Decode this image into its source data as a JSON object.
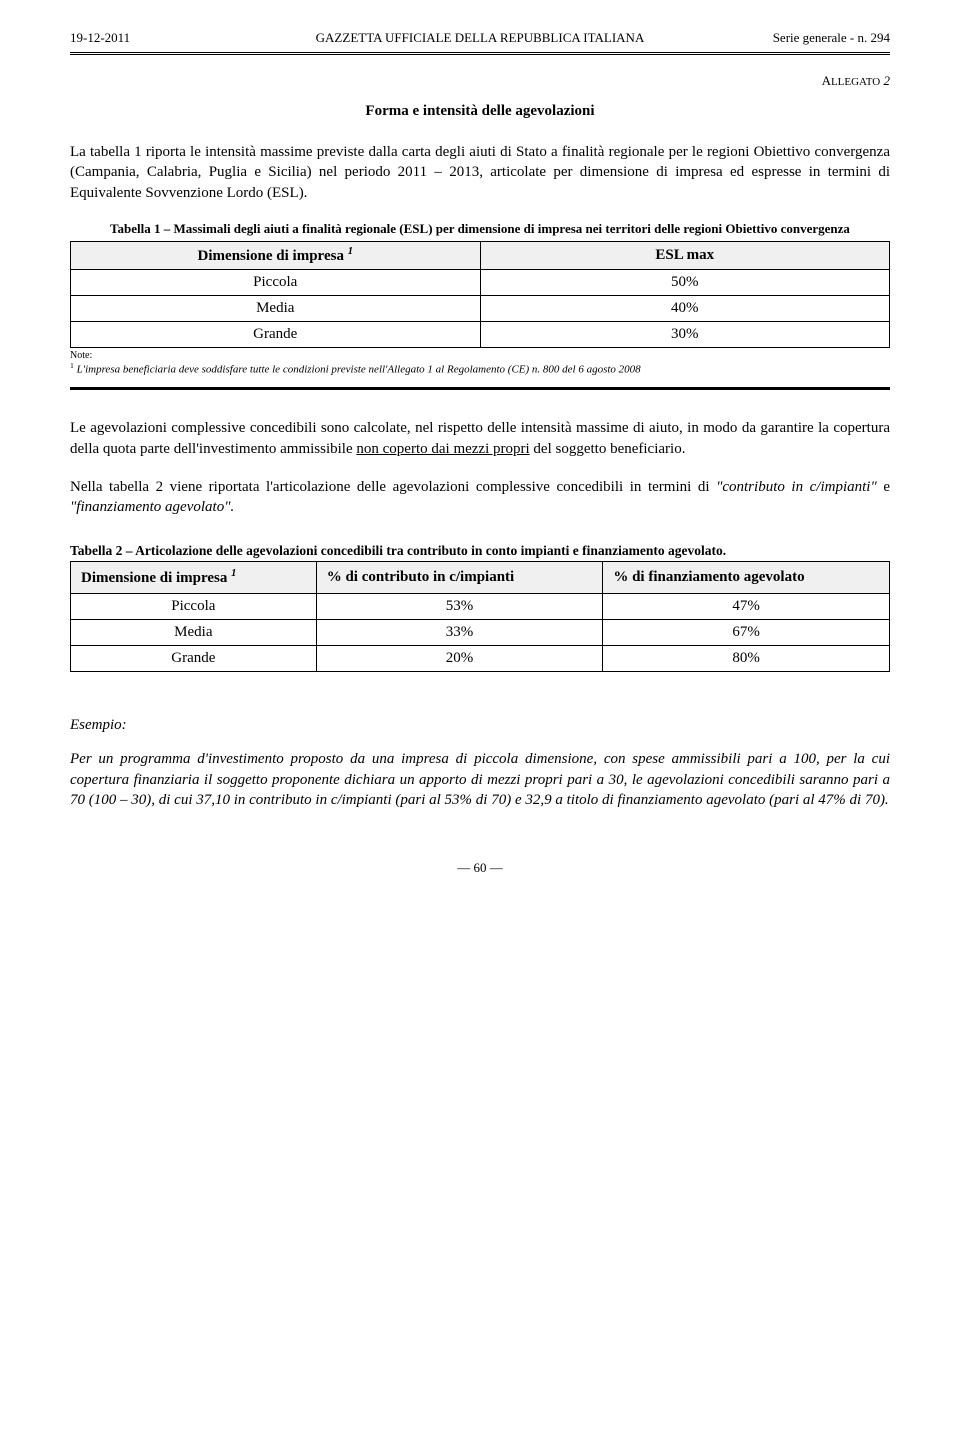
{
  "header": {
    "left": "19-12-2011",
    "center": "GAZZETTA UFFICIALE DELLA REPUBBLICA ITALIANA",
    "right": "Serie generale - n. 294"
  },
  "allegato": "ALLEGATO 2",
  "title": "Forma e intensità delle agevolazioni",
  "intro": "La tabella 1 riporta le intensità massime previste dalla carta degli aiuti di Stato a finalità regionale per le regioni Obiettivo convergenza (Campania, Calabria, Puglia e Sicilia) nel periodo 2011 – 2013, articolate per dimensione di impresa ed espresse in termini di Equivalente Sovvenzione Lordo (ESL).",
  "table1": {
    "caption": "Tabella 1 – Massimali degli aiuti a finalità regionale (ESL) per dimensione di impresa nei territori delle regioni Obiettivo convergenza",
    "header_left": "Dimensione di impresa",
    "header_right": "ESL max",
    "rows": [
      {
        "label": "Piccola",
        "value": "50%"
      },
      {
        "label": "Media",
        "value": "40%"
      },
      {
        "label": "Grande",
        "value": "30%"
      }
    ],
    "note_label": "Note:",
    "note_text": "L'impresa beneficiaria deve soddisfare tutte le condizioni previste nell'Allegato 1 al Regolamento (CE) n. 800 del 6 agosto 2008"
  },
  "para2": "Le agevolazioni complessive concedibili sono calcolate, nel rispetto delle intensità massime di aiuto, in modo da garantire la copertura della quota parte dell'investimento ammissibile ",
  "para2_underlined": "non coperto dai mezzi propri",
  "para2_after": " del soggetto beneficiario.",
  "para3_a": "Nella tabella 2 viene riportata l'articolazione delle agevolazioni complessive concedibili in termini di ",
  "para3_i1": "\"contributo in c/impianti\"",
  "para3_mid": " e ",
  "para3_i2": "\"finanziamento agevolato\".",
  "table2": {
    "caption": "Tabella 2 – Articolazione delle agevolazioni concedibili tra contributo in conto impianti e finanziamento agevolato.",
    "headers": [
      "Dimensione di impresa",
      "% di contributo in c/impianti",
      "% di finanziamento agevolato"
    ],
    "rows": [
      {
        "c0": "Piccola",
        "c1": "53%",
        "c2": "47%"
      },
      {
        "c0": "Media",
        "c1": "33%",
        "c2": "67%"
      },
      {
        "c0": "Grande",
        "c1": "20%",
        "c2": "80%"
      }
    ]
  },
  "esempio_label": "Esempio:",
  "esempio_body": "Per un programma d'investimento proposto da una impresa di piccola dimensione, con spese ammissibili pari a 100, per la cui copertura finanziaria il soggetto proponente dichiara un apporto di mezzi propri pari a 30, le agevolazioni concedibili saranno pari a 70 (100 – 30), di cui 37,10 in contributo in c/impianti (pari al 53% di 70) e 32,9 a titolo di finanziamento agevolato (pari al 47% di 70).",
  "page_num": "— 60 —"
}
